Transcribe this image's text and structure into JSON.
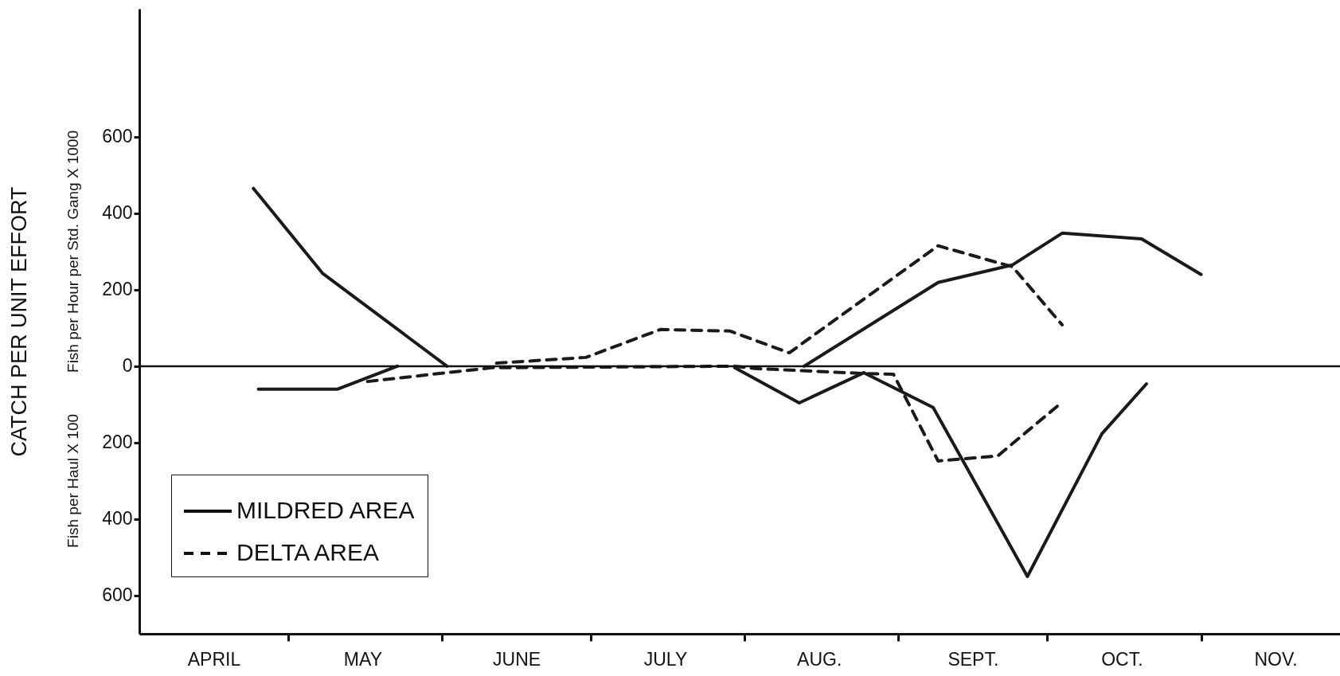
{
  "chart_data": {
    "type": "line",
    "ylabel": "CATCH PER UNIT EFFORT",
    "annotations": [
      "Fish per Hour per Std. Gang X 1000",
      "Fish per Haul X 100"
    ],
    "xlim": [
      "--04-01",
      "--11-29"
    ],
    "xticks": [
      {
        "value": "--05-01",
        "label": null
      },
      {
        "value": "--06-01",
        "label": null
      },
      {
        "value": "--07-01",
        "label": null
      },
      {
        "value": "--08-01",
        "label": null
      },
      {
        "value": "--09-01",
        "label": null
      },
      {
        "value": "--10-01",
        "label": null
      },
      {
        "value": "--11-01",
        "label": null
      },
      {
        "value": "--04-16",
        "label": "APRIL"
      },
      {
        "value": "--05-16",
        "label": "MAY"
      },
      {
        "value": "--06-16",
        "label": "JUNE"
      },
      {
        "value": "--07-16",
        "label": "JULY"
      },
      {
        "value": "--08-16",
        "label": "AUG."
      },
      {
        "value": "--09-16",
        "label": "SEPT."
      },
      {
        "value": "--10-16",
        "label": "OCT."
      },
      {
        "value": "--11-16",
        "label": "NOV."
      }
    ],
    "ylim": [
      -700,
      935
    ],
    "yticks": [
      600,
      400,
      200,
      0,
      {
        "value": -200,
        "label": "200"
      },
      {
        "value": -400,
        "label": "400"
      },
      {
        "value": -600,
        "label": "600"
      }
    ],
    "ref_lines": [
      {
        "axis": "y",
        "value": 0
      }
    ],
    "legend": "bottom left",
    "series": [
      {
        "name": "MILDRED AREA",
        "color": "#1a1a1a",
        "line_style": "solid",
        "x": [
          "--04-24",
          "--05-08",
          "--06-02",
          "--07-01",
          "--08-13",
          "--09-09",
          "--09-24",
          "--10-04",
          "--10-20",
          "--11-01"
        ],
        "values": [
          465,
          242,
          0,
          null,
          0,
          219,
          265,
          348,
          333,
          240
        ]
      },
      {
        "name": "DELTA AREA",
        "color": "#1a1a1a",
        "line_style": "dashed",
        "x": [
          "--06-12",
          "--06-30",
          "--07-15",
          "--07-29",
          "--08-10",
          "--09-09",
          "--09-24",
          "--10-04"
        ],
        "values": [
          8,
          23,
          96,
          92,
          35,
          315,
          260,
          108
        ]
      },
      {
        "color": "#1a1a1a",
        "line_style": "solid",
        "x": [
          "--04-25",
          "--05-11",
          "--05-23",
          "--07-01",
          "--07-30",
          "--08-12",
          "--08-25",
          "--09-08",
          "--09-27",
          "--10-12",
          "--10-21"
        ],
        "values": [
          -60,
          -60,
          0,
          null,
          -4,
          -96,
          -17,
          -108,
          -550,
          -177,
          -46
        ]
      },
      {
        "color": "#1a1a1a",
        "line_style": "dashed",
        "x": [
          "--05-17",
          "--06-11",
          "--07-30",
          "--08-03",
          "--08-25",
          "--08-31",
          "--09-09",
          "--09-21",
          "--10-04"
        ],
        "values": [
          -40,
          -4,
          0,
          -6,
          -19,
          -21,
          -248,
          -235,
          -94
        ]
      }
    ]
  }
}
